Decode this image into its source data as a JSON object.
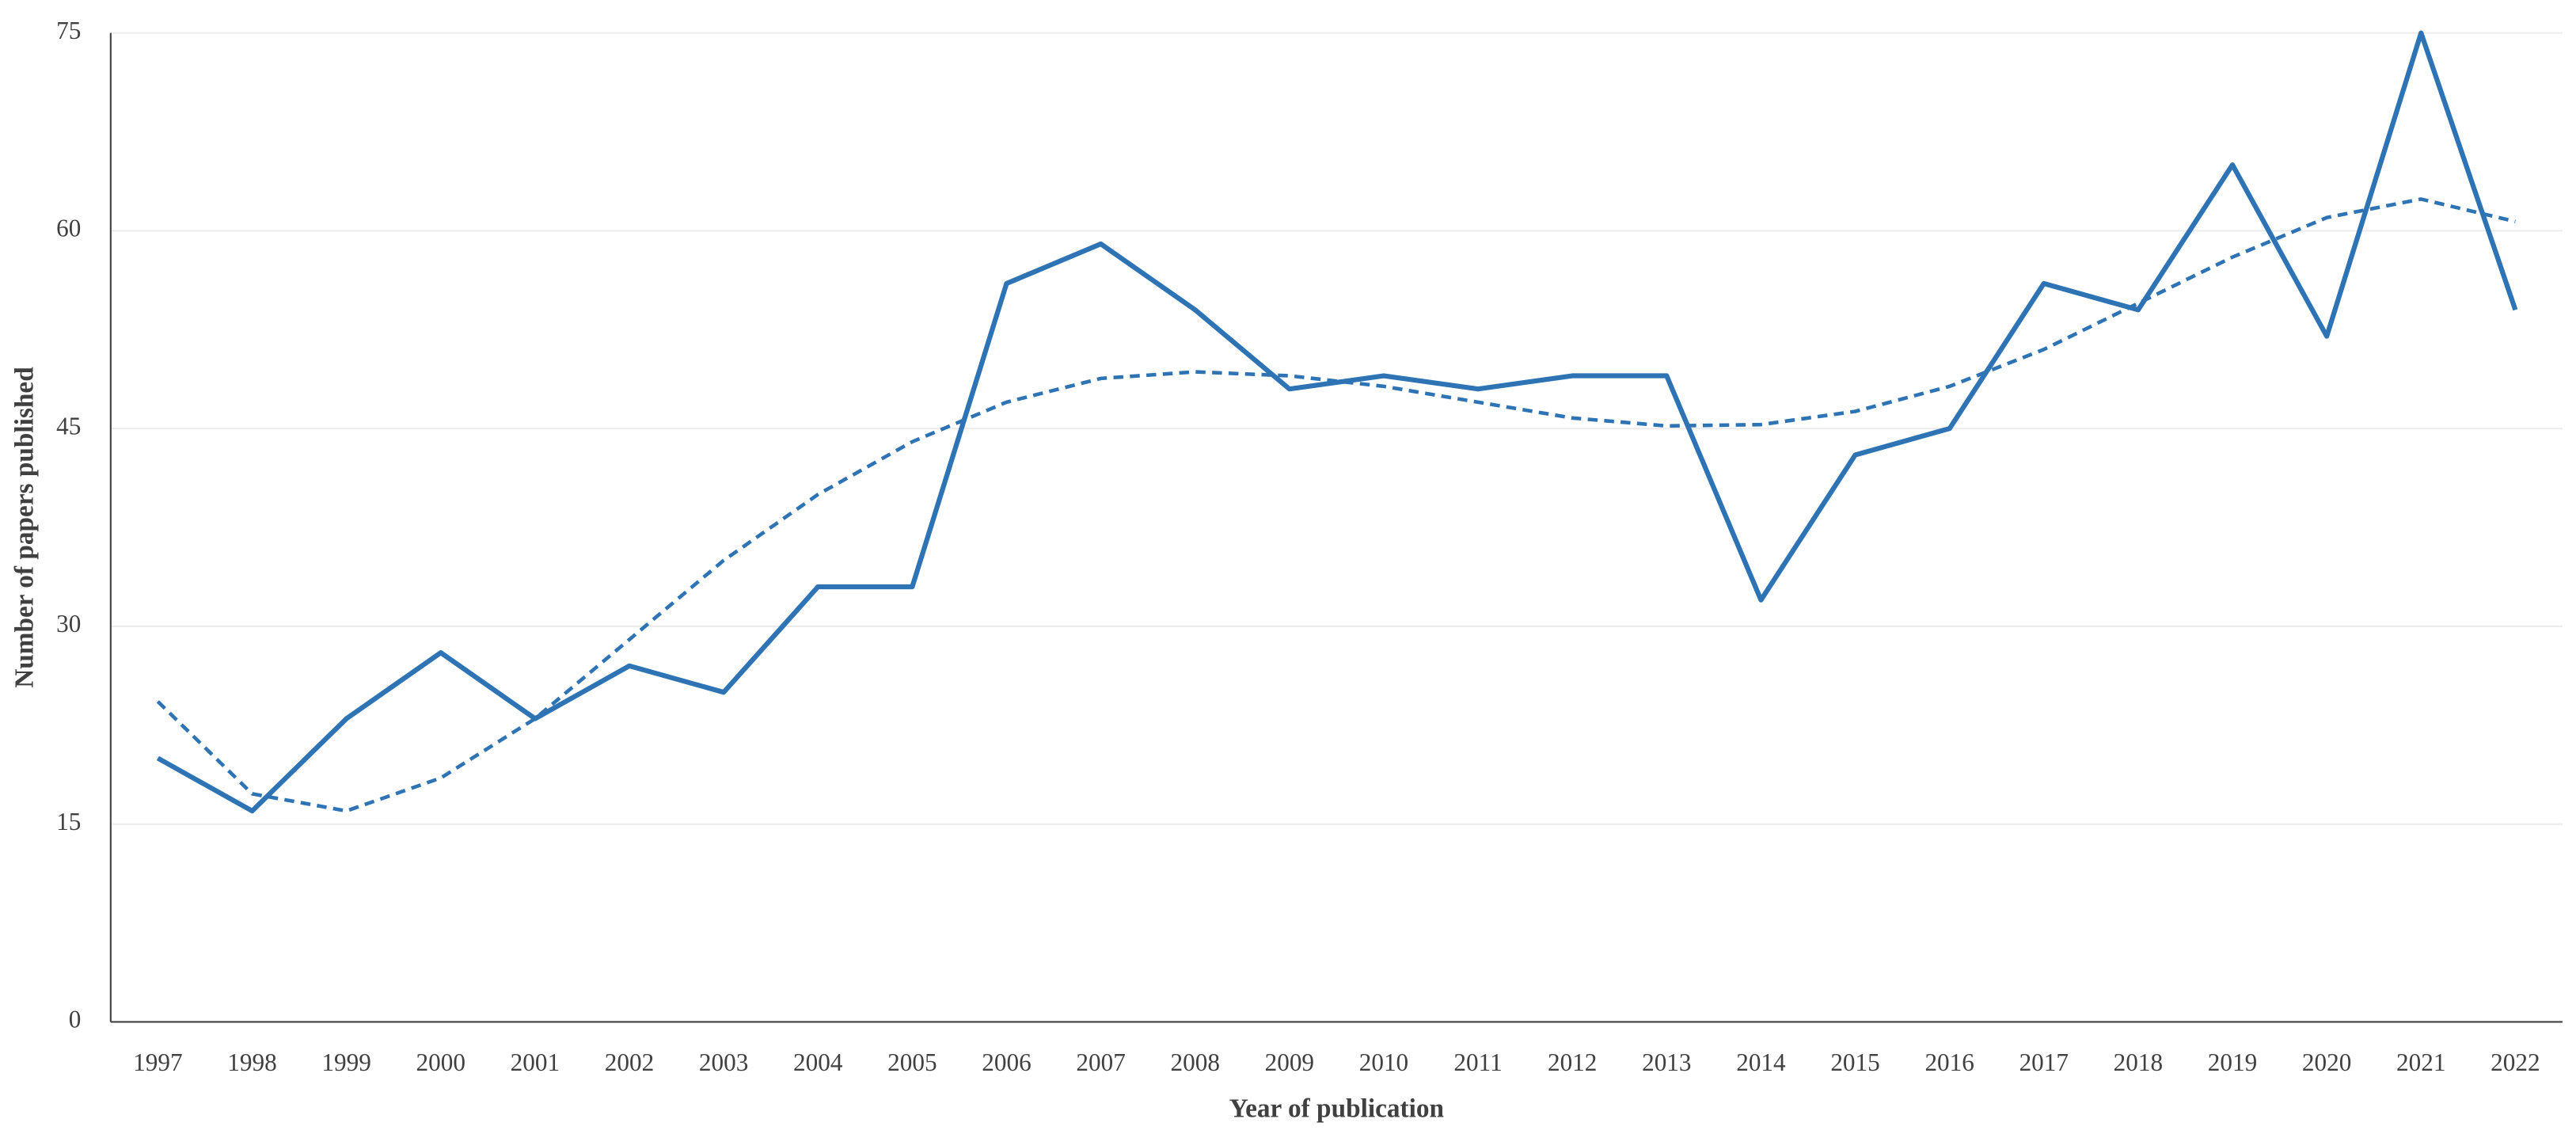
{
  "chart_data": {
    "type": "line",
    "x_label": "Year of publication",
    "y_label": "Number of papers published",
    "categories": [
      "1997",
      "1998",
      "1999",
      "2000",
      "2001",
      "2002",
      "2003",
      "2004",
      "2005",
      "2006",
      "2007",
      "2008",
      "2009",
      "2010",
      "2011",
      "2012",
      "2013",
      "2014",
      "2015",
      "2016",
      "2017",
      "2018",
      "2019",
      "2020",
      "2021",
      "2022"
    ],
    "series": [
      {
        "color": "#2e74b5",
        "dashed": false,
        "values": [
          20,
          16,
          23,
          28,
          23,
          27,
          25,
          33,
          33,
          56,
          59,
          54,
          48,
          49,
          48,
          49,
          49,
          32,
          43,
          45,
          56,
          54,
          65,
          52,
          75,
          54
        ]
      },
      {
        "color": "#2e74b5",
        "dashed": true,
        "values": [
          24.3,
          17.3,
          16,
          18.5,
          23,
          29,
          35,
          40,
          44,
          47,
          48.8,
          49.3,
          49,
          48.2,
          47,
          45.8,
          45.2,
          45.3,
          46.3,
          48.2,
          51,
          54.5,
          58,
          61,
          62.4,
          60.7
        ]
      }
    ],
    "ylim": [
      0,
      75
    ],
    "yticks": [
      0,
      15,
      30,
      45,
      60,
      75
    ],
    "grid": true
  }
}
